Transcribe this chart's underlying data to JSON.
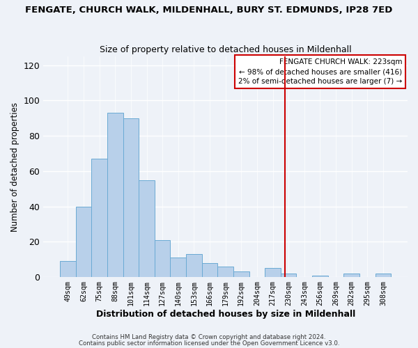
{
  "title": "FENGATE, CHURCH WALK, MILDENHALL, BURY ST. EDMUNDS, IP28 7ED",
  "subtitle": "Size of property relative to detached houses in Mildenhall",
  "xlabel": "Distribution of detached houses by size in Mildenhall",
  "ylabel": "Number of detached properties",
  "footer_line1": "Contains HM Land Registry data © Crown copyright and database right 2024.",
  "footer_line2": "Contains public sector information licensed under the Open Government Licence v3.0.",
  "bar_labels": [
    "49sqm",
    "62sqm",
    "75sqm",
    "88sqm",
    "101sqm",
    "114sqm",
    "127sqm",
    "140sqm",
    "153sqm",
    "166sqm",
    "179sqm",
    "192sqm",
    "204sqm",
    "217sqm",
    "230sqm",
    "243sqm",
    "256sqm",
    "269sqm",
    "282sqm",
    "295sqm",
    "308sqm"
  ],
  "bar_values": [
    9,
    40,
    67,
    93,
    90,
    55,
    21,
    11,
    13,
    8,
    6,
    3,
    0,
    5,
    2,
    0,
    1,
    0,
    2,
    0,
    2
  ],
  "bar_color": "#b8d0ea",
  "bar_edge_color": "#6aaad4",
  "ylim": [
    0,
    125
  ],
  "yticks": [
    0,
    20,
    40,
    60,
    80,
    100,
    120
  ],
  "legend_title": "FENGATE CHURCH WALK: 223sqm",
  "legend_line1": "← 98% of detached houses are smaller (416)",
  "legend_line2": "2% of semi-detached houses are larger (7) →",
  "vline_color": "#cc0000",
  "vline_x_index": 13.77,
  "background_color": "#eef2f8"
}
